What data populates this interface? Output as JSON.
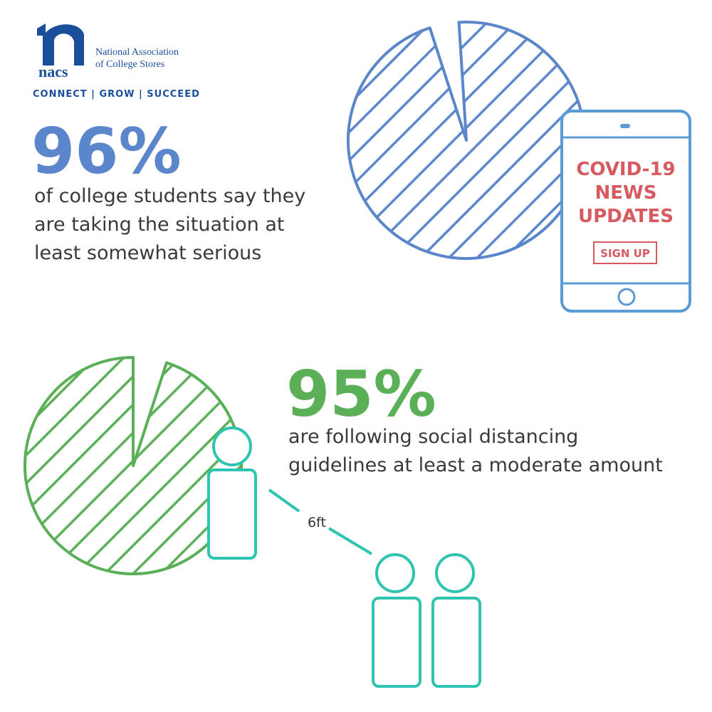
{
  "logo": {
    "mark": "nacs",
    "name_line1": "National Association",
    "name_line2": "of College Stores",
    "tagline": "CONNECT | GROW | SUCCEED"
  },
  "stats": [
    {
      "figure": {
        "value": 96,
        "label": "96%"
      },
      "color": "#5b86cc",
      "lines": [
        "of college students say they",
        "are taking the situation at",
        "least somewhat serious"
      ]
    },
    {
      "figure": {
        "value": 95,
        "label": "95%"
      },
      "color": "#5aaf57",
      "lines": [
        "are following social distancing",
        "guidelines at least a moderate amount"
      ]
    }
  ],
  "phone": {
    "lines": [
      "COVID-19",
      "NEWS",
      "UPDATES"
    ],
    "button": "SIGN UP"
  },
  "distance_label": "6ft"
}
